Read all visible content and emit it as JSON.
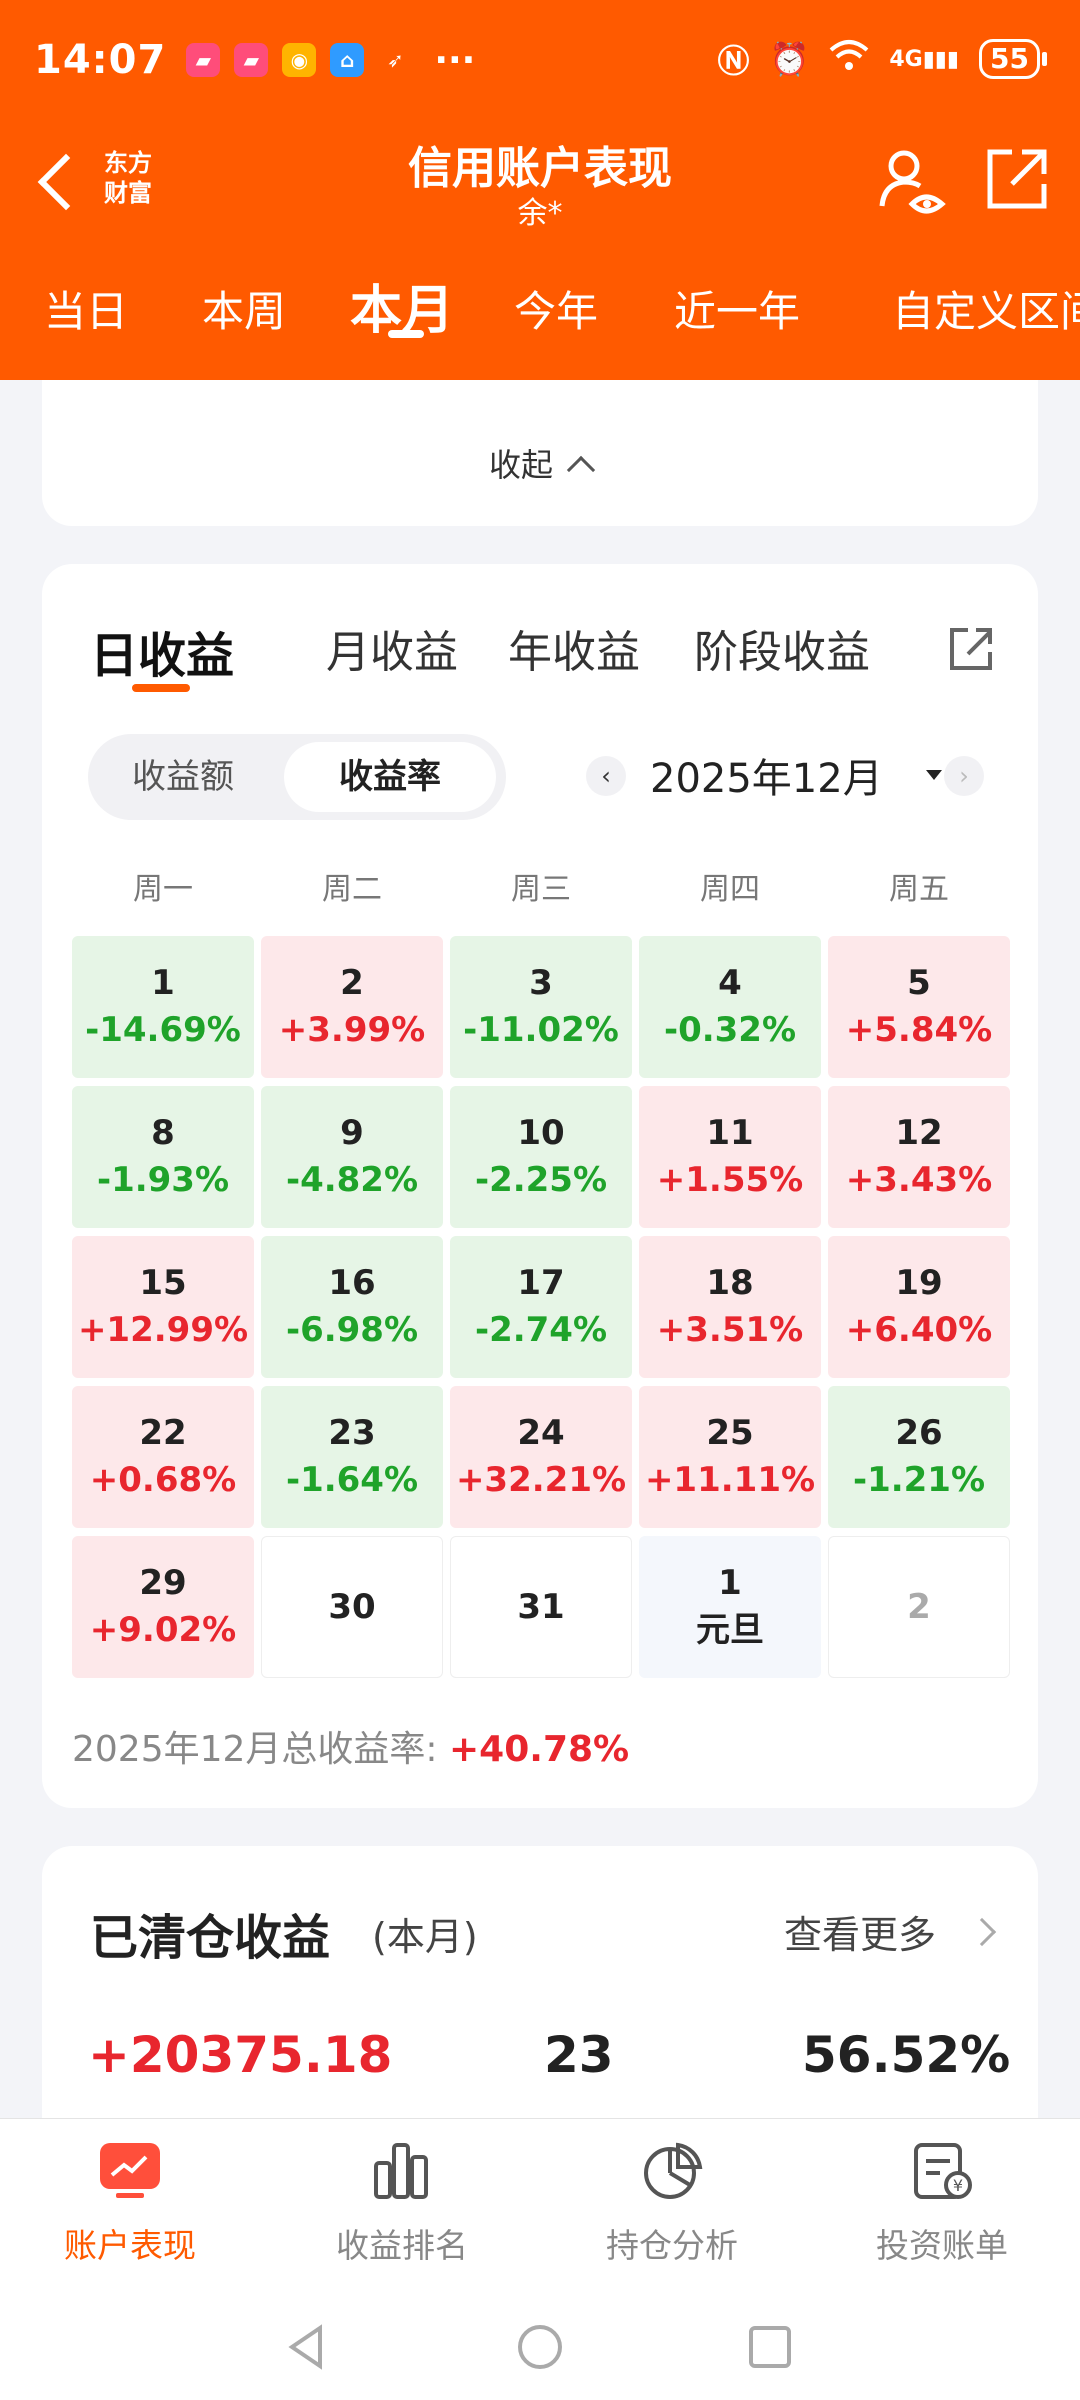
{
  "status_bar": {
    "time": "14:07",
    "dots": "···",
    "network": "4G",
    "battery": "55"
  },
  "header": {
    "logo_line1": "东方",
    "logo_line2": "财富",
    "title": "信用账户表现",
    "subtitle": "余*",
    "brand_color": "#ff5a00",
    "period_tabs": [
      "当日",
      "本周",
      "本月",
      "今年",
      "近一年",
      "自定义区间"
    ],
    "active_period": "本月"
  },
  "top_card": {
    "collapse_label": "收起"
  },
  "calendar_card": {
    "earn_tabs": [
      "日收益",
      "月收益",
      "年收益",
      "阶段收益"
    ],
    "active_earn_tab": "日收益",
    "segments": [
      "收益额",
      "收益率"
    ],
    "active_segment": "收益率",
    "month_label": "2025年12月",
    "weekdays": [
      "周一",
      "周二",
      "周三",
      "周四",
      "周五"
    ],
    "rows": [
      [
        {
          "day": "1",
          "value": "-14.69%",
          "trend": "down"
        },
        {
          "day": "2",
          "value": "+3.99%",
          "trend": "up"
        },
        {
          "day": "3",
          "value": "-11.02%",
          "trend": "down"
        },
        {
          "day": "4",
          "value": "-0.32%",
          "trend": "down"
        },
        {
          "day": "5",
          "value": "+5.84%",
          "trend": "up"
        }
      ],
      [
        {
          "day": "8",
          "value": "-1.93%",
          "trend": "down"
        },
        {
          "day": "9",
          "value": "-4.82%",
          "trend": "down"
        },
        {
          "day": "10",
          "value": "-2.25%",
          "trend": "down"
        },
        {
          "day": "11",
          "value": "+1.55%",
          "trend": "up"
        },
        {
          "day": "12",
          "value": "+3.43%",
          "trend": "up"
        }
      ],
      [
        {
          "day": "15",
          "value": "+12.99%",
          "trend": "up"
        },
        {
          "day": "16",
          "value": "-6.98%",
          "trend": "down"
        },
        {
          "day": "17",
          "value": "-2.74%",
          "trend": "down"
        },
        {
          "day": "18",
          "value": "+3.51%",
          "trend": "up"
        },
        {
          "day": "19",
          "value": "+6.40%",
          "trend": "up"
        }
      ],
      [
        {
          "day": "22",
          "value": "+0.68%",
          "trend": "up"
        },
        {
          "day": "23",
          "value": "-1.64%",
          "trend": "down"
        },
        {
          "day": "24",
          "value": "+32.21%",
          "trend": "up"
        },
        {
          "day": "25",
          "value": "+11.11%",
          "trend": "up"
        },
        {
          "day": "26",
          "value": "-1.21%",
          "trend": "down"
        }
      ],
      [
        {
          "day": "29",
          "value": "+9.02%",
          "trend": "up"
        },
        {
          "day": "30",
          "value": "",
          "trend": "empty"
        },
        {
          "day": "31",
          "value": "",
          "trend": "empty"
        },
        {
          "day": "1",
          "value": "元旦",
          "trend": "holiday"
        },
        {
          "day": "2",
          "value": "",
          "trend": "next-month"
        }
      ]
    ],
    "total_label": "2025年12月总收益率:",
    "total_value": "+40.78%",
    "up_color": "#e8262e",
    "down_color": "#1fa32a"
  },
  "cleared_card": {
    "title": "已清仓收益",
    "subtitle": "(本月)",
    "more_label": "查看更多",
    "stat_profit": "+20375.18",
    "stat_count": "23",
    "stat_rate": "56.52%"
  },
  "bottom_nav": {
    "items": [
      "账户表现",
      "收益排名",
      "持仓分析",
      "投资账单"
    ],
    "active": "账户表现"
  }
}
